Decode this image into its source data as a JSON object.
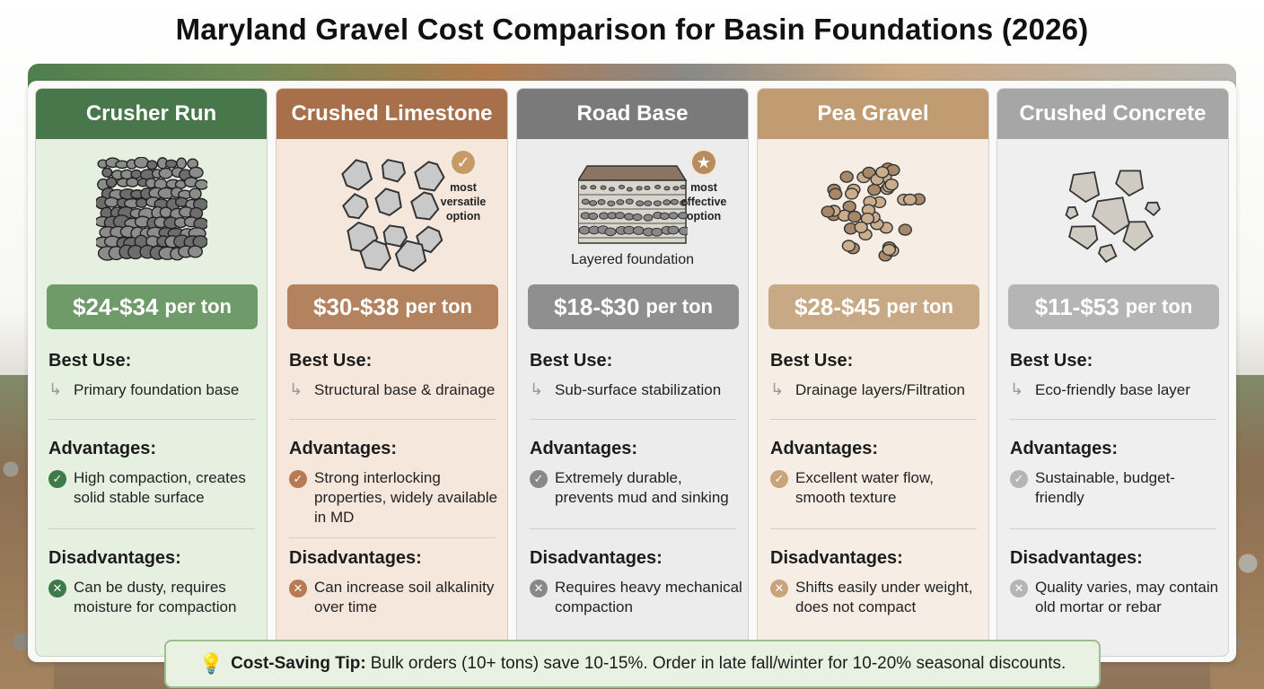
{
  "title": "Maryland Gravel Cost Comparison for Basin Foundations (2026)",
  "cards": [
    {
      "name": "Crusher Run",
      "header_color": "#47774a",
      "bg_color": "#e6f0e0",
      "price_color": "#6f9a6a",
      "icon_color": "#3f7a4a",
      "price": "$24-$34",
      "price_unit": "per ton",
      "best_use_label": "Best Use:",
      "best_use": "Primary foundation base",
      "advantages_label": "Advantages:",
      "advantages": "High compaction, creates solid stable surface",
      "disadvantages_label": "Disadvantages:",
      "disadvantages": "Can be dusty, requires moisture for compaction"
    },
    {
      "name": "Crushed Limestone",
      "header_color": "#a8704a",
      "bg_color": "#f6e7dc",
      "price_color": "#b3825e",
      "icon_color": "#b77a52",
      "price": "$30-$38",
      "price_unit": "per ton",
      "badge": "most versatile option",
      "badge_color": "#c79a66",
      "best_use_label": "Best Use:",
      "best_use": "Structural base & drainage",
      "advantages_label": "Advantages:",
      "advantages": "Strong interlocking properties, widely available in MD",
      "disadvantages_label": "Disadvantages:",
      "disadvantages": "Can increase soil alkalinity over time"
    },
    {
      "name": "Road Base",
      "header_color": "#7a7a7a",
      "bg_color": "#ececec",
      "price_color": "#8f8f8f",
      "icon_color": "#888888",
      "price": "$18-$30",
      "price_unit": "per ton",
      "caption": "Layered foundation",
      "badge": "most effective option",
      "badge_color": "#b88d5e",
      "best_use_label": "Best Use:",
      "best_use": "Sub-surface stabilization",
      "advantages_label": "Advantages:",
      "advantages": "Extremely durable, prevents mud and sinking",
      "disadvantages_label": "Disadvantages:",
      "disadvantages": "Requires heavy mechanical compaction"
    },
    {
      "name": "Pea Gravel",
      "header_color": "#c19c73",
      "bg_color": "#f6eee4",
      "price_color": "#c8a985",
      "icon_color": "#c9a37c",
      "price": "$28-$45",
      "price_unit": "per ton",
      "best_use_label": "Best Use:",
      "best_use": "Drainage layers/Filtration",
      "advantages_label": "Advantages:",
      "advantages": "Excellent water flow, smooth texture",
      "disadvantages_label": "Disadvantages:",
      "disadvantages": "Shifts easily under weight, does not compact"
    },
    {
      "name": "Crushed Concrete",
      "header_color": "#a6a6a6",
      "bg_color": "#efefef",
      "price_color": "#b5b5b5",
      "icon_color": "#b5b5b5",
      "price": "$11-$53",
      "price_unit": "per ton",
      "best_use_label": "Best Use:",
      "best_use": "Eco-friendly base layer",
      "advantages_label": "Advantages:",
      "advantages": "Sustainable, budget-friendly",
      "disadvantages_label": "Disadvantages:",
      "disadvantages": "Quality varies, may contain old mortar or rebar"
    }
  ],
  "tip": {
    "label": "Cost-Saving Tip:",
    "text": "Bulk orders (10+ tons) save 10-15%. Order in late fall/winter for 10-20% seasonal discounts."
  },
  "icons": {
    "best_use": "return-arrow-icon",
    "advantage": "check-circle-icon",
    "disadvantage": "x-circle-icon",
    "tip": "lightbulb-icon"
  }
}
